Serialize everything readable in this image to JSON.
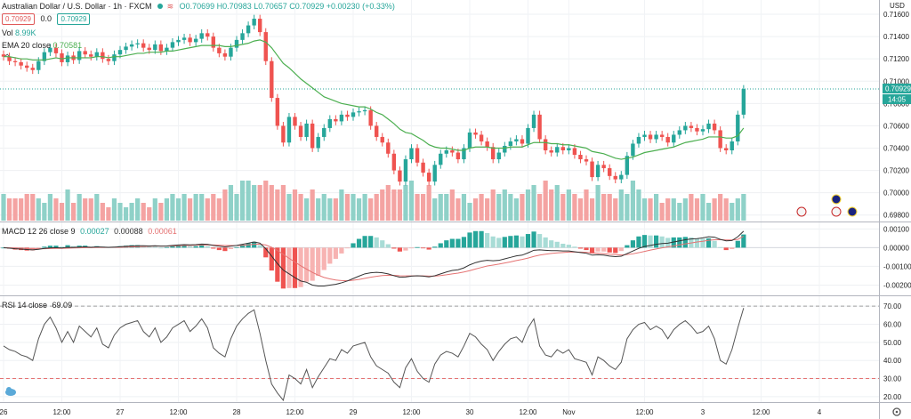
{
  "header": {
    "symbol": "Australian Dollar / U.S. Dollar · 1h · FXCM",
    "ohlc": "O0.70699 H0.70983 L0.70657 C0.70929 +0.00230 (+0.33%)",
    "bid": "0.70929",
    "spread": "0.0",
    "ask": "0.70929",
    "vol_label": "Vol",
    "vol_value": "8.99K",
    "ema_label": "EMA 20 close",
    "ema_value": "0.70581",
    "currency": "USD"
  },
  "price_badges": {
    "last": "0.70929",
    "countdown": "14:05"
  },
  "panes": {
    "macd_title": "MACD 12 26 close 9",
    "macd_values": [
      "0.00027",
      "0.00088",
      "0.00061"
    ],
    "rsi_title": "RSI 14 close",
    "rsi_value": "69.09"
  },
  "colors": {
    "up": "#26a69a",
    "down": "#ef5350",
    "ema": "#4caf50",
    "macd": "#333333",
    "signal": "#e57373",
    "rsi": "#555555"
  },
  "chart_data": {
    "type": "candlestick",
    "title": "Australian Dollar / U.S. Dollar, 1h, FXCM",
    "price_axis": {
      "ylim": [
        0.6975,
        0.7168
      ],
      "ticks": [
        "0.71600",
        "0.71400",
        "0.71200",
        "0.71000",
        "0.70800",
        "0.70600",
        "0.70400",
        "0.70200",
        "0.70000",
        "0.69800"
      ]
    },
    "macd_axis": {
      "ylim": [
        -0.0025,
        0.0013
      ],
      "ticks": [
        "0.00100",
        "0.00000",
        "-0.00100",
        "-0.00200"
      ]
    },
    "rsi_axis": {
      "ylim": [
        17,
        75
      ],
      "ticks": [
        "70.00",
        "60.00",
        "50.00",
        "40.00",
        "30.00",
        "20.00"
      ],
      "levels": [
        70,
        30
      ]
    },
    "x_ticks": [
      {
        "i": 0,
        "label": "26"
      },
      {
        "i": 10,
        "label": "12:00"
      },
      {
        "i": 20,
        "label": "27"
      },
      {
        "i": 30,
        "label": "12:00"
      },
      {
        "i": 40,
        "label": "28"
      },
      {
        "i": 50,
        "label": "12:00"
      },
      {
        "i": 60,
        "label": "29"
      },
      {
        "i": 70,
        "label": "12:00"
      },
      {
        "i": 80,
        "label": "30"
      },
      {
        "i": 90,
        "label": "12:00"
      },
      {
        "i": 97,
        "label": "Nov"
      },
      {
        "i": 110,
        "label": "12:00"
      },
      {
        "i": 120,
        "label": "3"
      },
      {
        "i": 130,
        "label": "12:00"
      },
      {
        "i": 140,
        "label": "4"
      }
    ],
    "closes": [
      0.7122,
      0.7118,
      0.7117,
      0.7114,
      0.7112,
      0.711,
      0.7118,
      0.7126,
      0.713,
      0.7125,
      0.7117,
      0.7123,
      0.7119,
      0.7127,
      0.7124,
      0.7122,
      0.7126,
      0.712,
      0.7118,
      0.7124,
      0.7128,
      0.7131,
      0.7133,
      0.7134,
      0.713,
      0.7128,
      0.7133,
      0.7127,
      0.713,
      0.7135,
      0.7137,
      0.7139,
      0.7135,
      0.7138,
      0.7143,
      0.714,
      0.713,
      0.7125,
      0.7122,
      0.713,
      0.7137,
      0.7143,
      0.715,
      0.7156,
      0.7144,
      0.7118,
      0.7085,
      0.706,
      0.7045,
      0.7068,
      0.706,
      0.705,
      0.7062,
      0.704,
      0.705,
      0.7058,
      0.7066,
      0.7064,
      0.707,
      0.7068,
      0.7072,
      0.7073,
      0.7074,
      0.706,
      0.705,
      0.7045,
      0.7035,
      0.702,
      0.701,
      0.703,
      0.704,
      0.7027,
      0.7018,
      0.701,
      0.7025,
      0.7035,
      0.7038,
      0.7036,
      0.703,
      0.704,
      0.7054,
      0.7052,
      0.7046,
      0.7041,
      0.703,
      0.7036,
      0.7042,
      0.7046,
      0.7048,
      0.7044,
      0.7058,
      0.707,
      0.7048,
      0.7038,
      0.7036,
      0.7041,
      0.7038,
      0.704,
      0.7034,
      0.703,
      0.7028,
      0.7014,
      0.7025,
      0.7022,
      0.7015,
      0.7012,
      0.7016,
      0.7033,
      0.7044,
      0.705,
      0.7052,
      0.7048,
      0.7052,
      0.705,
      0.7045,
      0.7052,
      0.7056,
      0.706,
      0.7058,
      0.7055,
      0.7057,
      0.7062,
      0.7056,
      0.704,
      0.7038,
      0.7046,
      0.707,
      0.7093
    ],
    "ema": [
      0.7122,
      0.7122,
      0.7121,
      0.712,
      0.712,
      0.7119,
      0.7119,
      0.7119,
      0.712,
      0.7121,
      0.712,
      0.7121,
      0.7121,
      0.7121,
      0.7121,
      0.7121,
      0.7122,
      0.7122,
      0.7121,
      0.7122,
      0.7122,
      0.7123,
      0.7124,
      0.7125,
      0.7125,
      0.7126,
      0.7126,
      0.7126,
      0.7127,
      0.7127,
      0.7128,
      0.7129,
      0.713,
      0.7131,
      0.7132,
      0.7132,
      0.7132,
      0.7132,
      0.7131,
      0.7131,
      0.7132,
      0.7133,
      0.7134,
      0.7136,
      0.7137,
      0.7135,
      0.713,
      0.7123,
      0.7116,
      0.7112,
      0.7107,
      0.7102,
      0.7098,
      0.7094,
      0.709,
      0.7086,
      0.7084,
      0.7082,
      0.708,
      0.7079,
      0.7078,
      0.7077,
      0.7077,
      0.7075,
      0.7072,
      0.707,
      0.7066,
      0.7062,
      0.7057,
      0.7054,
      0.7053,
      0.705,
      0.7047,
      0.7043,
      0.7041,
      0.704,
      0.704,
      0.7039,
      0.7038,
      0.7038,
      0.704,
      0.7041,
      0.7041,
      0.7041,
      0.704,
      0.704,
      0.704,
      0.7041,
      0.7041,
      0.7041,
      0.7043,
      0.7045,
      0.7045,
      0.7045,
      0.7044,
      0.7044,
      0.7043,
      0.7043,
      0.7042,
      0.7041,
      0.704,
      0.7037,
      0.7036,
      0.7035,
      0.7033,
      0.7031,
      0.703,
      0.7031,
      0.7032,
      0.7034,
      0.7036,
      0.7037,
      0.7038,
      0.7039,
      0.704,
      0.7041,
      0.7043,
      0.7045,
      0.7046,
      0.7047,
      0.7048,
      0.705,
      0.705,
      0.705,
      0.7049,
      0.7049,
      0.7051,
      0.7058
    ],
    "volume_rel": [
      0.6,
      0.5,
      0.5,
      0.5,
      0.6,
      0.6,
      0.5,
      0.4,
      0.6,
      0.5,
      0.4,
      0.7,
      0.4,
      0.6,
      0.5,
      0.5,
      0.6,
      0.4,
      0.3,
      0.5,
      0.4,
      0.3,
      0.4,
      0.5,
      0.4,
      0.3,
      0.5,
      0.4,
      0.5,
      0.6,
      0.5,
      0.6,
      0.5,
      0.6,
      0.6,
      0.5,
      0.6,
      0.5,
      0.7,
      0.8,
      0.6,
      0.9,
      0.9,
      0.8,
      0.8,
      0.9,
      0.8,
      0.7,
      0.8,
      0.6,
      0.7,
      0.6,
      0.5,
      0.7,
      0.5,
      0.6,
      0.5,
      0.5,
      0.7,
      0.6,
      0.6,
      0.5,
      0.6,
      0.5,
      0.6,
      0.7,
      0.8,
      0.7,
      0.7,
      0.8,
      0.9,
      0.6,
      0.6,
      0.8,
      0.5,
      0.6,
      0.6,
      0.7,
      0.5,
      0.6,
      0.4,
      0.5,
      0.6,
      0.5,
      0.7,
      0.6,
      0.7,
      0.6,
      0.5,
      0.6,
      0.7,
      0.8,
      0.6,
      0.9,
      0.7,
      0.8,
      0.6,
      0.7,
      0.6,
      0.5,
      0.7,
      0.5,
      0.8,
      0.6,
      0.6,
      0.5,
      0.7,
      0.6,
      0.9,
      0.7,
      0.5,
      0.5,
      0.6,
      0.4,
      0.5,
      0.5,
      0.4,
      0.5,
      0.6,
      0.5,
      0.6,
      0.4,
      0.5,
      0.6,
      0.5,
      0.4,
      0.5,
      0.6
    ],
    "macd": [
      0.0,
      -3e-05,
      -6e-05,
      -8e-05,
      -0.0001,
      -0.00012,
      -9e-05,
      -4e-05,
      -1e-05,
      0.0,
      -2e-05,
      2e-05,
      1e-05,
      3e-05,
      4e-05,
      2e-05,
      4e-05,
      3e-05,
      2e-05,
      3e-05,
      5e-05,
      7e-05,
      9e-05,
      0.0001,
      0.0001,
      9e-05,
      0.0001,
      8e-05,
      9e-05,
      0.00012,
      0.00014,
      0.00016,
      0.00015,
      0.00016,
      0.00019,
      0.00018,
      0.00012,
      8e-05,
      4e-05,
      8e-05,
      0.00012,
      0.00018,
      0.00024,
      0.0003,
      0.00024,
      -6e-05,
      -0.00045,
      -0.00085,
      -0.0012,
      -0.0014,
      -0.0016,
      -0.00178,
      -0.00185,
      -0.002,
      -0.00205,
      -0.00205,
      -0.002,
      -0.00196,
      -0.00188,
      -0.00178,
      -0.00165,
      -0.00152,
      -0.0014,
      -0.00134,
      -0.00132,
      -0.00134,
      -0.0014,
      -0.0015,
      -0.00158,
      -0.00157,
      -0.00152,
      -0.0015,
      -0.00152,
      -0.00156,
      -0.0015,
      -0.0014,
      -0.0013,
      -0.00122,
      -0.00118,
      -0.00108,
      -0.00092,
      -0.0008,
      -0.00072,
      -0.00068,
      -0.0007,
      -0.00068,
      -0.0006,
      -0.00052,
      -0.00044,
      -0.0004,
      -0.00028,
      -0.00014,
      -0.00012,
      -0.00014,
      -0.00016,
      -0.00016,
      -0.00018,
      -0.00018,
      -0.00022,
      -0.00026,
      -0.0003,
      -0.0004,
      -0.00038,
      -0.0004,
      -0.00045,
      -0.00048,
      -0.00046,
      -0.00032,
      -0.00018,
      -4e-05,
      6e-05,
      0.00012,
      0.00018,
      0.00022,
      0.00024,
      0.0003,
      0.00036,
      0.00042,
      0.00046,
      0.00048,
      0.00052,
      0.00058,
      0.00056,
      0.00044,
      0.00036,
      0.00038,
      0.00058,
      0.00088
    ],
    "signal": [
      0.0,
      -1e-05,
      -2e-05,
      -3e-05,
      -4e-05,
      -6e-05,
      -6e-05,
      -6e-05,
      -5e-05,
      -4e-05,
      -4e-05,
      -3e-05,
      -2e-05,
      -1e-05,
      0.0,
      0.0,
      1e-05,
      1e-05,
      1e-05,
      2e-05,
      2e-05,
      3e-05,
      4e-05,
      5e-05,
      6e-05,
      7e-05,
      8e-05,
      8e-05,
      8e-05,
      9e-05,
      0.0001,
      0.00011,
      0.00012,
      0.00013,
      0.00014,
      0.00015,
      0.00014,
      0.00013,
      0.00011,
      0.00011,
      0.00011,
      0.00012,
      0.00015,
      0.00018,
      0.00019,
      0.00014,
      2e-05,
      -0.00015,
      -0.00036,
      -0.00057,
      -0.00077,
      -0.00097,
      -0.00115,
      -0.00132,
      -0.00147,
      -0.00159,
      -0.00167,
      -0.00173,
      -0.00176,
      -0.00177,
      -0.00174,
      -0.0017,
      -0.00164,
      -0.00158,
      -0.00153,
      -0.00149,
      -0.00147,
      -0.00148,
      -0.0015,
      -0.00151,
      -0.00151,
      -0.00151,
      -0.00151,
      -0.00152,
      -0.00152,
      -0.00149,
      -0.00145,
      -0.0014,
      -0.00136,
      -0.0013,
      -0.00123,
      -0.00114,
      -0.00106,
      -0.00098,
      -0.00093,
      -0.00088,
      -0.00082,
      -0.00076,
      -0.00069,
      -0.00063,
      -0.00056,
      -0.00047,
      -0.0004,
      -0.00035,
      -0.00031,
      -0.00028,
      -0.00026,
      -0.00024,
      -0.00024,
      -0.00024,
      -0.00025,
      -0.00028,
      -0.0003,
      -0.00032,
      -0.00035,
      -0.00037,
      -0.00039,
      -0.00037,
      -0.00033,
      -0.00027,
      -0.0002,
      -0.00013,
      -7e-05,
      -1e-05,
      4e-05,
      9e-05,
      0.00015,
      0.0002,
      0.00025,
      0.0003,
      0.00034,
      0.00039,
      0.00042,
      0.00043,
      0.00041,
      0.00041,
      0.00044,
      0.00061
    ],
    "rsi": [
      48,
      46,
      45,
      43,
      42,
      40,
      52,
      60,
      64,
      58,
      50,
      56,
      50,
      59,
      56,
      53,
      58,
      49,
      47,
      54,
      58,
      60,
      61,
      62,
      56,
      53,
      58,
      50,
      53,
      58,
      60,
      62,
      56,
      59,
      63,
      58,
      47,
      44,
      42,
      52,
      59,
      63,
      66,
      68,
      55,
      40,
      27,
      22,
      18,
      32,
      30,
      27,
      35,
      25,
      31,
      36,
      41,
      40,
      46,
      44,
      48,
      49,
      50,
      42,
      37,
      35,
      33,
      28,
      25,
      36,
      41,
      34,
      30,
      28,
      38,
      43,
      45,
      44,
      42,
      48,
      55,
      53,
      49,
      46,
      40,
      45,
      49,
      52,
      53,
      50,
      58,
      63,
      48,
      43,
      42,
      46,
      44,
      46,
      41,
      40,
      39,
      32,
      42,
      40,
      37,
      35,
      39,
      52,
      57,
      60,
      61,
      57,
      59,
      57,
      52,
      57,
      60,
      62,
      59,
      55,
      56,
      59,
      52,
      40,
      38,
      46,
      58,
      69
    ]
  }
}
